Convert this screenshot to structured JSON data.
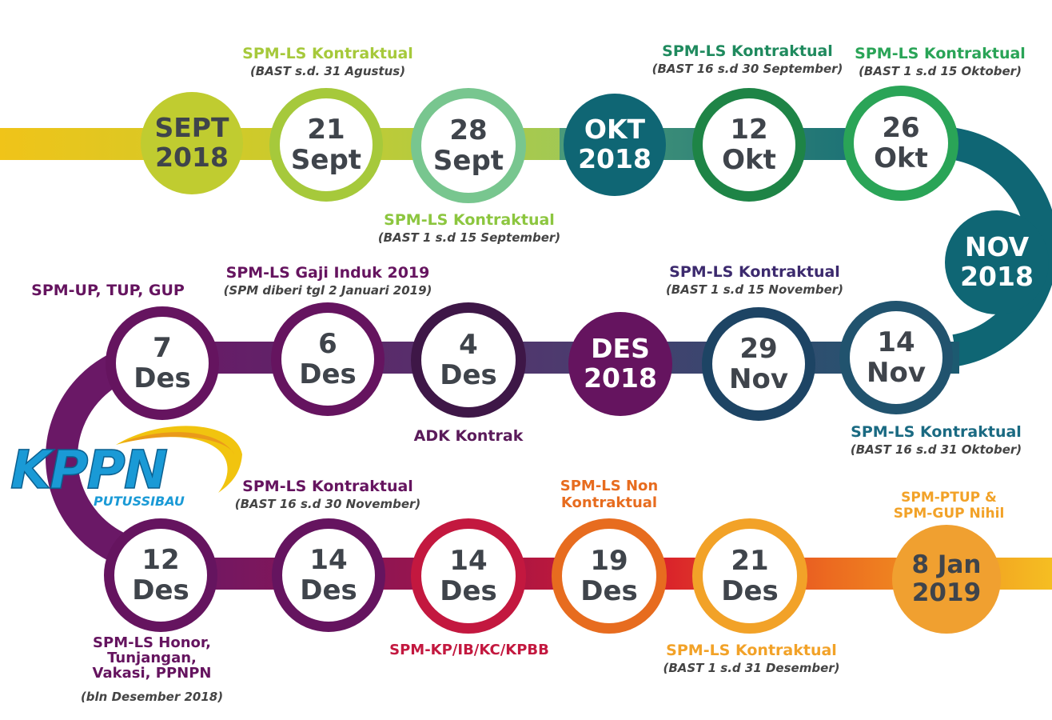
{
  "colors": {
    "sep": "#c0cc30",
    "sep_light": "#a6c93b",
    "sep_green": "#78c68f",
    "okt": "#0f6674",
    "okt_green": "#1e8446",
    "okt_green2": "#2aa457",
    "nov": "#0f6674",
    "nov_ring": "#21536e",
    "nov_dark": "#1d4464",
    "des_purple": "#65145f",
    "des_dark": "#3e1747",
    "des_red": "#c3183f",
    "des_orange": "#e76c1f",
    "des_amber": "#f2a228",
    "jan": "#f0a030",
    "label_dark": "#2d3a3f"
  },
  "nodes": {
    "sept2018": {
      "line1": "SEPT",
      "line2": "2018"
    },
    "sep21": {
      "line1": "21",
      "line2": "Sept"
    },
    "sep28": {
      "line1": "28",
      "line2": "Sept"
    },
    "okt2018": {
      "line1": "OKT",
      "line2": "2018"
    },
    "okt12": {
      "line1": "12",
      "line2": "Okt"
    },
    "okt26": {
      "line1": "26",
      "line2": "Okt"
    },
    "nov2018": {
      "line1": "NOV",
      "line2": "2018"
    },
    "nov14": {
      "line1": "14",
      "line2": "Nov"
    },
    "nov29": {
      "line1": "29",
      "line2": "Nov"
    },
    "des2018": {
      "line1": "DES",
      "line2": "2018"
    },
    "des4": {
      "line1": "4",
      "line2": "Des"
    },
    "des6": {
      "line1": "6",
      "line2": "Des"
    },
    "des7": {
      "line1": "7",
      "line2": "Des"
    },
    "des12": {
      "line1": "12",
      "line2": "Des"
    },
    "des14a": {
      "line1": "14",
      "line2": "Des"
    },
    "des14b": {
      "line1": "14",
      "line2": "Des"
    },
    "des19": {
      "line1": "19",
      "line2": "Des"
    },
    "des21": {
      "line1": "21",
      "line2": "Des"
    },
    "jan8": {
      "line1": "8 Jan",
      "line2": "2019"
    }
  },
  "labels": {
    "sep21": {
      "title": "SPM-LS Kontraktual",
      "sub": "(BAST s.d. 31 Agustus)"
    },
    "sep28": {
      "title": "SPM-LS Kontraktual",
      "sub": "(BAST 1 s.d 15 September)"
    },
    "okt12": {
      "title": "SPM-LS Kontraktual",
      "sub": "(BAST 16 s.d 30 September)"
    },
    "okt26": {
      "title": "SPM-LS Kontraktual",
      "sub": "(BAST 1 s.d 15 Oktober)"
    },
    "nov14": {
      "title": "SPM-LS Kontraktual",
      "sub": "(BAST 16 s.d 31 Oktober)"
    },
    "nov29": {
      "title": "SPM-LS Kontraktual",
      "sub": "(BAST 1 s.d 15 November)"
    },
    "des4": {
      "title": "ADK Kontrak"
    },
    "des6": {
      "title": "SPM-LS Gaji Induk 2019",
      "sub": "(SPM diberi tgl 2 Januari 2019)"
    },
    "des7": {
      "title": "SPM-UP, TUP, GUP"
    },
    "des12": {
      "title_lines": [
        "SPM-LS Honor,",
        "Tunjangan,",
        "Vakasi, PPNPN"
      ],
      "sub": "(bln Desember 2018)"
    },
    "des14a": {
      "title": "SPM-LS Kontraktual",
      "sub": "(BAST 16 s.d 30 November)"
    },
    "des14b": {
      "title": "SPM-KP/IB/KC/KPBB"
    },
    "des19": {
      "title_lines": [
        "SPM-LS Non",
        "Kontraktual"
      ]
    },
    "des21": {
      "title": "SPM-LS Kontraktual",
      "sub": "(BAST 1 s.d 31 Desember)"
    },
    "jan8": {
      "title_lines": [
        "SPM-PTUP &",
        "SPM-GUP Nihil"
      ]
    }
  },
  "logo": {
    "name": "KPPN",
    "city": "PUTUSSIBAU"
  }
}
